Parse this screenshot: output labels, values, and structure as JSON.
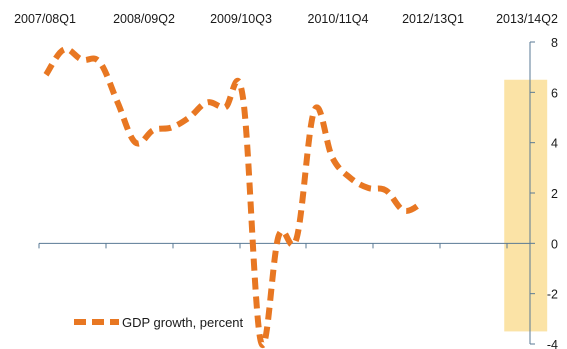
{
  "chart_data": {
    "type": "line",
    "title": "",
    "xlabel": "",
    "ylabel": "",
    "x_tick_labels": [
      "2007/08Q1",
      "2008/09Q2",
      "2009/10Q3",
      "2010/11Q4",
      "2012/13Q1",
      "2013/14Q2"
    ],
    "y_ticks": [
      -4,
      -2,
      0,
      2,
      4,
      6,
      8
    ],
    "ylim": [
      -4,
      8
    ],
    "grid": false,
    "legend_position": "bottom-left",
    "highlight_band": {
      "x_start": 25.6,
      "x_end": 28.0,
      "y_start": -3.5,
      "y_end": 6.5,
      "color": "#fbe3a6"
    },
    "series": [
      {
        "name": "GDP growth, percent",
        "color": "#e87722",
        "style": "dashed",
        "x": [
          0,
          1,
          2,
          3,
          4,
          5,
          6,
          7,
          8,
          9,
          10,
          11,
          12,
          13,
          14,
          15,
          16,
          17,
          18,
          19,
          20,
          21,
          22,
          23,
          24,
          25,
          26,
          27
        ],
        "values": [
          6.7,
          7.7,
          7.3,
          7.2,
          5.6,
          4.0,
          4.5,
          4.6,
          5.0,
          5.6,
          5.4,
          5.8,
          -3.9,
          0.3,
          0.2,
          5.3,
          3.4,
          2.6,
          2.2,
          2.1,
          1.3,
          1.6,
          null,
          null,
          null,
          null,
          null,
          null
        ]
      }
    ]
  }
}
